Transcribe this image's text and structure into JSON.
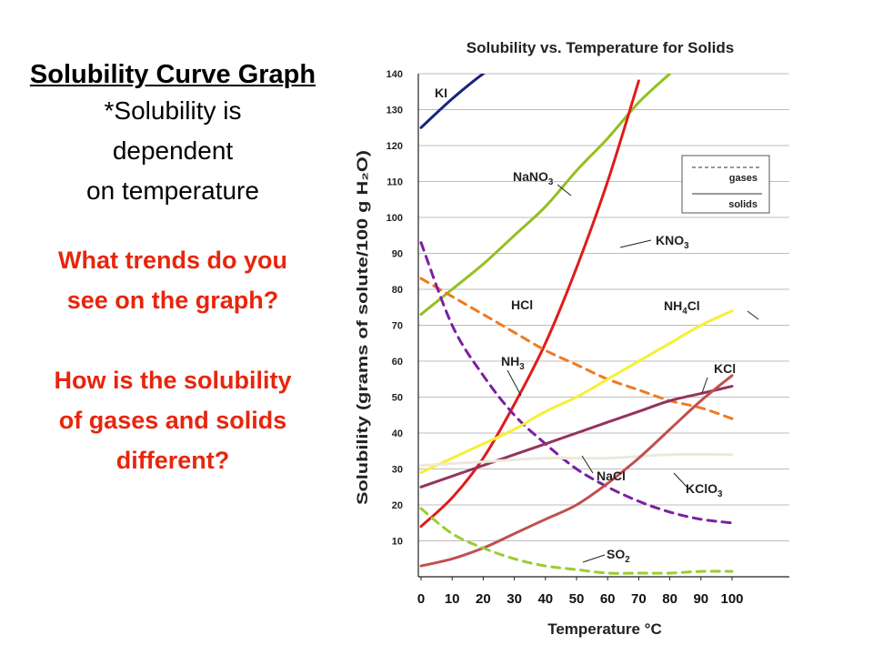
{
  "slide": {
    "title": "Solubility Curve Graph",
    "subtitle_lines": [
      "*Solubility  is",
      "dependent",
      "on temperature"
    ],
    "question1_lines": [
      "What trends do you",
      "see on the graph?"
    ],
    "question2_lines": [
      "How is the solubility",
      "of gases and solids",
      "different?"
    ]
  },
  "chart_data": {
    "type": "line",
    "title": "Solubility vs. Temperature for Solids",
    "xlabel": "Temperature °C",
    "ylabel": "Solubility (grams of solute/100 g H₂O)",
    "xlim": [
      0,
      100
    ],
    "ylim": [
      0,
      140
    ],
    "x_ticks": [
      "0",
      "10",
      "20",
      "30",
      "40",
      "50",
      "60",
      "70",
      "80",
      "90",
      "100"
    ],
    "y_ticks": [
      "10",
      "20",
      "30",
      "40",
      "50",
      "60",
      "70",
      "80",
      "90",
      "100",
      "110",
      "120",
      "130",
      "140"
    ],
    "grid": "horizontal",
    "legend": {
      "position": "top-right",
      "entries": [
        {
          "label": "gases",
          "style": "dashed"
        },
        {
          "label": "solids",
          "style": "solid"
        }
      ]
    },
    "series": [
      {
        "name": "KI",
        "color": "#1a237e",
        "style": "solid",
        "x": [
          0,
          10,
          20,
          22
        ],
        "y": [
          125,
          133,
          140,
          140.5
        ]
      },
      {
        "name": "NaNO3",
        "color": "#93c020",
        "style": "solid",
        "x": [
          0,
          10,
          20,
          30,
          40,
          50,
          60,
          70,
          80
        ],
        "y": [
          73,
          80,
          87,
          95,
          103,
          113,
          122,
          132,
          140
        ]
      },
      {
        "name": "KNO3",
        "color": "#e01b1b",
        "style": "solid",
        "x": [
          0,
          10,
          20,
          30,
          40,
          50,
          60,
          70
        ],
        "y": [
          14,
          22,
          33,
          48,
          65,
          86,
          110,
          138
        ]
      },
      {
        "name": "HCl",
        "color": "#f07a20",
        "style": "dashed",
        "x": [
          0,
          10,
          20,
          30,
          40,
          50,
          60,
          70,
          80,
          90,
          100
        ],
        "y": [
          83,
          78,
          73,
          68,
          63,
          59,
          55,
          52,
          49,
          47,
          44
        ]
      },
      {
        "name": "NH3",
        "color": "#7b1fa2",
        "style": "dashed",
        "x": [
          0,
          10,
          20,
          30,
          40,
          50,
          60,
          70,
          80,
          90,
          100
        ],
        "y": [
          93,
          70,
          56,
          45,
          37,
          30,
          25,
          21,
          18,
          16,
          15
        ]
      },
      {
        "name": "NH4Cl",
        "color": "#f4f135",
        "style": "solid",
        "x": [
          0,
          10,
          20,
          30,
          40,
          50,
          60,
          70,
          80,
          90,
          100
        ],
        "y": [
          29,
          33,
          37,
          41,
          46,
          50,
          55,
          60,
          65,
          70,
          74
        ]
      },
      {
        "name": "KCl",
        "color": "#943460",
        "style": "solid",
        "x": [
          0,
          10,
          20,
          30,
          40,
          50,
          60,
          70,
          80,
          90,
          100
        ],
        "y": [
          25,
          28,
          31,
          34,
          37,
          40,
          43,
          46,
          49,
          51,
          53
        ]
      },
      {
        "name": "NaCl",
        "color": "#ece9dc",
        "style": "solid",
        "x": [
          0,
          20,
          40,
          60,
          80,
          100
        ],
        "y": [
          31,
          32,
          33,
          33,
          34,
          34
        ]
      },
      {
        "name": "KClO3",
        "color": "#c0504d",
        "style": "solid",
        "x": [
          0,
          10,
          20,
          30,
          40,
          50,
          60,
          70,
          80,
          90,
          100
        ],
        "y": [
          3,
          5,
          8,
          12,
          16,
          20,
          26,
          33,
          41,
          49,
          56
        ]
      },
      {
        "name": "SO2",
        "color": "#9acd32",
        "style": "dashed",
        "x": [
          0,
          10,
          20,
          30,
          40,
          50,
          60,
          70,
          80,
          90,
          100
        ],
        "y": [
          19,
          12,
          8,
          5,
          3,
          2,
          1,
          1,
          1,
          1.5,
          1.5
        ]
      }
    ],
    "annotations": [
      {
        "text": "KI",
        "series": "KI"
      },
      {
        "text": "NaNO3",
        "series": "NaNO3"
      },
      {
        "text": "KNO3",
        "series": "KNO3"
      },
      {
        "text": "HCl",
        "series": "HCl"
      },
      {
        "text": "NH3",
        "series": "NH3"
      },
      {
        "text": "NH4Cl",
        "series": "NH4Cl"
      },
      {
        "text": "KCl",
        "series": "KCl"
      },
      {
        "text": "NaCl",
        "series": "NaCl"
      },
      {
        "text": "KClO3",
        "series": "KClO3"
      },
      {
        "text": "SO2",
        "series": "SO2"
      }
    ]
  }
}
